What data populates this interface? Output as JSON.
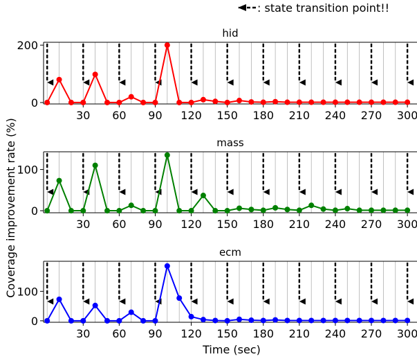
{
  "chart_data": {
    "legend_text": ": state transition point!!",
    "ylabel": "Coverage improvement rate (%)",
    "xlabel": "Time (sec)",
    "x_ticks": [
      30,
      60,
      90,
      120,
      150,
      180,
      210,
      240,
      270,
      300
    ],
    "grid": "vertical lines every 10 sec",
    "transition_points": [
      0,
      30,
      60,
      90,
      120,
      150,
      180,
      210,
      240,
      270,
      300
    ],
    "x": [
      0,
      10,
      20,
      30,
      40,
      50,
      60,
      70,
      80,
      90,
      100,
      110,
      120,
      130,
      140,
      150,
      160,
      170,
      180,
      190,
      200,
      210,
      220,
      230,
      240,
      250,
      260,
      270,
      280,
      290,
      300
    ],
    "panels": [
      {
        "type": "line",
        "title": "hid",
        "color": "#ff0000",
        "ylim": [
          -5,
          210
        ],
        "y_ticks": [
          0,
          200
        ],
        "values": [
          0,
          80,
          0,
          0,
          98,
          0,
          0,
          20,
          0,
          0,
          200,
          0,
          0,
          10,
          4,
          0,
          7,
          2,
          1,
          3,
          1,
          1,
          1,
          1,
          1,
          1,
          1,
          1,
          1,
          1,
          1
        ]
      },
      {
        "type": "line",
        "title": "mass",
        "color": "#008000",
        "ylim": [
          -5,
          143
        ],
        "y_ticks": [
          0,
          100
        ],
        "values": [
          0,
          73,
          0,
          0,
          110,
          0,
          0,
          13,
          0,
          0,
          135,
          0,
          0,
          37,
          0,
          0,
          6,
          3,
          1,
          7,
          3,
          1,
          13,
          4,
          1,
          5,
          1,
          1,
          1,
          1,
          1
        ]
      },
      {
        "type": "line",
        "title": "ecm",
        "color": "#0000ff",
        "ylim": [
          -5,
          202
        ],
        "y_ticks": [
          0,
          100
        ],
        "values": [
          0,
          73,
          0,
          0,
          52,
          0,
          0,
          29,
          0,
          0,
          186,
          77,
          14,
          4,
          1,
          0,
          5,
          2,
          1,
          3,
          1,
          1,
          1,
          1,
          1,
          1,
          1,
          1,
          1,
          1,
          1
        ]
      }
    ]
  }
}
